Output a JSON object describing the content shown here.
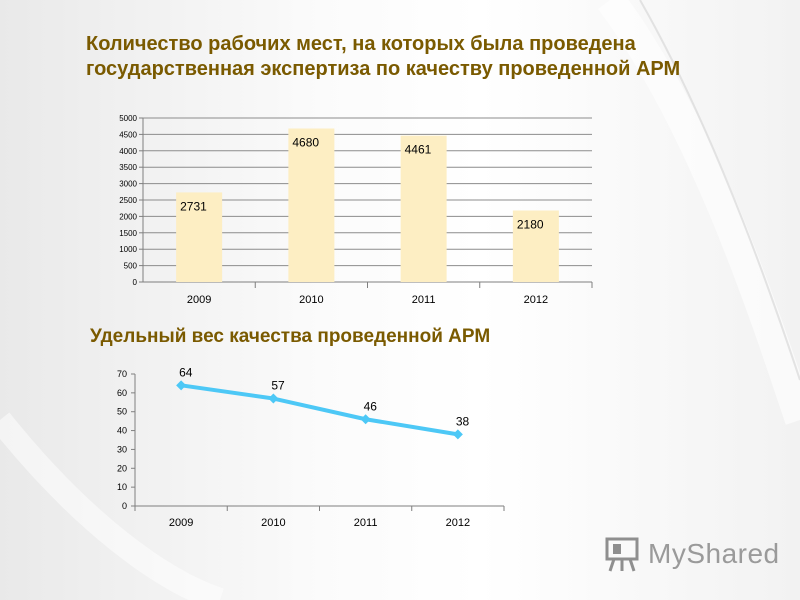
{
  "title": "Количество рабочих мест, на которых была проведена государственная экспертиза по качеству проведенной АРМ",
  "subtitle": "Удельный вес качества проведенной АРМ",
  "logo_text": "MyShared",
  "colors": {
    "title": "#7a5a00",
    "bar_fill": "#fdeec3",
    "line": "#4dc8f6"
  },
  "chart_data": [
    {
      "type": "bar",
      "categories": [
        "2009",
        "2010",
        "2011",
        "2012"
      ],
      "values": [
        2731,
        4680,
        4461,
        2180
      ],
      "ylim": [
        0,
        5000
      ],
      "yticks": [
        0,
        500,
        1000,
        1500,
        2000,
        2500,
        3000,
        3500,
        4000,
        4500,
        5000
      ],
      "grid": true,
      "data_labels": true
    },
    {
      "type": "line",
      "title": "Удельный вес качества проведенной АРМ",
      "categories": [
        "2009",
        "2010",
        "2011",
        "2012"
      ],
      "values": [
        64,
        57,
        46,
        38
      ],
      "ylim": [
        0,
        70
      ],
      "yticks": [
        0,
        10,
        20,
        30,
        40,
        50,
        60,
        70
      ],
      "grid": false,
      "data_labels": true,
      "marker": "diamond"
    }
  ]
}
